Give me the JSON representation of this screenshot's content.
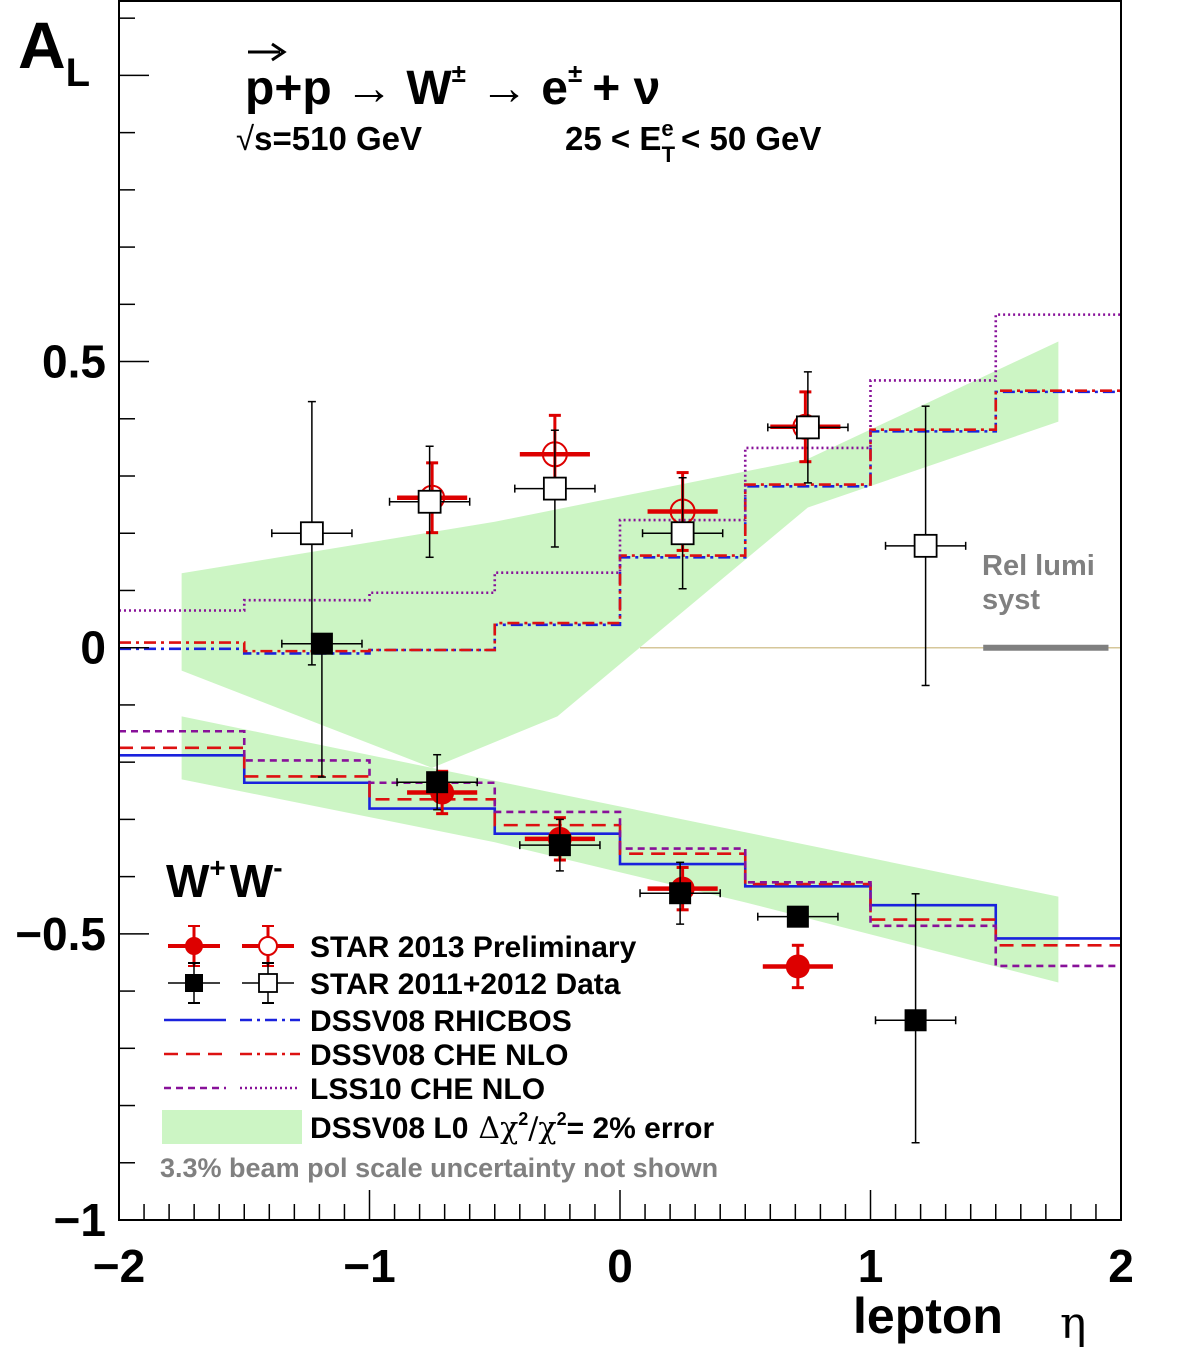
{
  "chart_data": {
    "type": "scatter",
    "ylabel": "A",
    "ylabel_sub": "L",
    "xlabel": "lepton",
    "xlabel_symbol": "η",
    "xlim": [
      -2,
      2
    ],
    "ylim": [
      -1.0,
      1.13
    ],
    "xticks": [
      -2,
      -1,
      0,
      1,
      2
    ],
    "xtick_labels": [
      "−2",
      "−1",
      "0",
      "1",
      "2"
    ],
    "yticks": [
      -1,
      -0.5,
      0,
      0.5
    ],
    "ytick_labels": [
      "−1",
      "−0.5",
      "0",
      "0.5"
    ],
    "grid": false,
    "header": {
      "reaction_p": "p",
      "reaction_rest": "+p → W",
      "reaction_pm": "±",
      "reaction_arrow": "→ e",
      "reaction_e_pm": "±",
      "reaction_tail": "+ ν",
      "sqrt_symbol": "√",
      "sqrt_s": "s=510 GeV",
      "et_cut_lo": "25 < E",
      "et_sup": "e",
      "et_sub": "T",
      "et_cut_hi": "< 50 GeV"
    },
    "rel_lumi": {
      "label_line1": "Rel lumi",
      "label_line2": "syst",
      "x": [
        1.45,
        1.95
      ],
      "y": 0.0,
      "color": "#808080"
    },
    "charge_labels": {
      "w_plus": "W",
      "w_plus_sup": "+",
      "w_minus": "W",
      "w_minus_sup": "-"
    },
    "legend": {
      "position": "bottom-left",
      "entries": [
        "STAR 2013 Preliminary",
        "STAR 2011+2012 Data",
        "DSSV08  RHICBOS",
        "DSSV08  CHE NLO",
        "LSS10 CHE NLO",
        "DSSV08 L0",
        "Δχ",
        "2",
        "/χ",
        "2",
        "= 2% error"
      ],
      "note": "3.3% beam pol scale uncertainty not shown"
    },
    "colors": {
      "star2013": "#dd0000",
      "star2011": "#000000",
      "rhicbos": "#1a22dd",
      "che_dssv": "#dd1111",
      "lss10": "#881199",
      "band": "#ccf5c4",
      "rel_lumi": "#808080",
      "zero_line": "#d6c79a"
    },
    "series": [
      {
        "name": "STAR 2013 Preliminary W+",
        "marker": "filled-circle",
        "points": [
          {
            "x": -0.71,
            "y": -0.253,
            "xerr": 0.14,
            "yerr_lo": 0.037,
            "yerr_hi": 0.037
          },
          {
            "x": -0.24,
            "y": -0.334,
            "xerr": 0.14,
            "yerr_lo": 0.037,
            "yerr_hi": 0.037
          },
          {
            "x": 0.25,
            "y": -0.421,
            "xerr": 0.14,
            "yerr_lo": 0.037,
            "yerr_hi": 0.037
          },
          {
            "x": 0.71,
            "y": -0.557,
            "xerr": 0.14,
            "yerr_lo": 0.037,
            "yerr_hi": 0.037
          }
        ]
      },
      {
        "name": "STAR 2013 Preliminary W-",
        "marker": "open-circle",
        "points": [
          {
            "x": -0.75,
            "y": 0.262,
            "xerr": 0.14,
            "yerr_lo": 0.061,
            "yerr_hi": 0.061
          },
          {
            "x": -0.26,
            "y": 0.338,
            "xerr": 0.14,
            "yerr_lo": 0.068,
            "yerr_hi": 0.068
          },
          {
            "x": 0.25,
            "y": 0.238,
            "xerr": 0.14,
            "yerr_lo": 0.068,
            "yerr_hi": 0.068
          },
          {
            "x": 0.74,
            "y": 0.386,
            "xerr": 0.14,
            "yerr_lo": 0.061,
            "yerr_hi": 0.061
          }
        ]
      },
      {
        "name": "STAR 2011+2012 Data W+",
        "marker": "filled-square",
        "points": [
          {
            "x": -1.19,
            "y": 0.007,
            "xerr": 0.16,
            "yerr_lo": 0.233,
            "yerr_hi": 0.008
          },
          {
            "x": -0.73,
            "y": -0.235,
            "xerr": 0.16,
            "yerr_lo": 0.048,
            "yerr_hi": 0.048
          },
          {
            "x": -0.24,
            "y": -0.345,
            "xerr": 0.16,
            "yerr_lo": 0.045,
            "yerr_hi": 0.045
          },
          {
            "x": 0.24,
            "y": -0.429,
            "xerr": 0.16,
            "yerr_lo": 0.054,
            "yerr_hi": 0.054
          },
          {
            "x": 0.71,
            "y": -0.47,
            "xerr": 0.16,
            "yerr_lo": 0.01,
            "yerr_hi": 0.01
          },
          {
            "x": 1.18,
            "y": -0.651,
            "xerr": 0.16,
            "yerr_lo": 0.214,
            "yerr_hi": 0.221
          }
        ]
      },
      {
        "name": "STAR 2011+2012 Data W-",
        "marker": "open-square",
        "points": [
          {
            "x": -1.23,
            "y": 0.2,
            "xerr": 0.16,
            "yerr_lo": 0.23,
            "yerr_hi": 0.23
          },
          {
            "x": -0.76,
            "y": 0.255,
            "xerr": 0.16,
            "yerr_lo": 0.097,
            "yerr_hi": 0.097
          },
          {
            "x": -0.26,
            "y": 0.278,
            "xerr": 0.16,
            "yerr_lo": 0.102,
            "yerr_hi": 0.102
          },
          {
            "x": 0.25,
            "y": 0.2,
            "xerr": 0.16,
            "yerr_lo": 0.097,
            "yerr_hi": 0.097
          },
          {
            "x": 0.75,
            "y": 0.385,
            "xerr": 0.16,
            "yerr_lo": 0.097,
            "yerr_hi": 0.097
          },
          {
            "x": 1.22,
            "y": 0.178,
            "xerr": 0.16,
            "yerr_lo": 0.244,
            "yerr_hi": 0.244
          }
        ]
      }
    ],
    "curves": [
      {
        "name": "DSSV08 RHICBOS W+",
        "style": "solid",
        "color": "rhicbos",
        "edges": [
          -2,
          -1.5,
          -1,
          -0.5,
          0,
          0.5,
          1,
          1.5,
          2
        ],
        "values": [
          -0.188,
          -0.236,
          -0.281,
          -0.325,
          -0.378,
          -0.417,
          -0.45,
          -0.508
        ]
      },
      {
        "name": "DSSV08 CHE NLO W+",
        "style": "dashed",
        "color": "che_dssv",
        "edges": [
          -2,
          -1.5,
          -1,
          -0.5,
          0,
          0.5,
          1,
          1.5,
          2
        ],
        "values": [
          -0.175,
          -0.225,
          -0.265,
          -0.31,
          -0.36,
          -0.413,
          -0.475,
          -0.52
        ]
      },
      {
        "name": "LSS10 CHE NLO W+",
        "style": "dashed-short",
        "color": "lss10",
        "edges": [
          -2,
          -1.5,
          -1,
          -0.5,
          0,
          0.5,
          1,
          1.5,
          2
        ],
        "values": [
          -0.146,
          -0.197,
          -0.236,
          -0.287,
          -0.351,
          -0.41,
          -0.486,
          -0.556
        ]
      },
      {
        "name": "DSSV08 RHICBOS W-",
        "style": "dash-dot",
        "color": "rhicbos",
        "edges": [
          -2,
          -1.5,
          -1,
          -0.5,
          0,
          0.5,
          1,
          1.5,
          2
        ],
        "values": [
          -0.002,
          -0.01,
          -0.004,
          0.04,
          0.158,
          0.282,
          0.378,
          0.447
        ]
      },
      {
        "name": "DSSV08 CHE NLO W-",
        "style": "dash-dot",
        "color": "che_dssv",
        "edges": [
          -2,
          -1.5,
          -1,
          -0.5,
          0,
          0.5,
          1,
          1.5,
          2
        ],
        "values": [
          0.009,
          -0.006,
          -0.004,
          0.043,
          0.161,
          0.285,
          0.381,
          0.449
        ]
      },
      {
        "name": "LSS10 CHE NLO W-",
        "style": "dotted",
        "color": "lss10",
        "edges": [
          -2,
          -1.5,
          -1,
          -0.5,
          0,
          0.5,
          1,
          1.5,
          2
        ],
        "values": [
          0.065,
          0.083,
          0.096,
          0.131,
          0.223,
          0.349,
          0.467,
          0.582
        ]
      }
    ],
    "bands": [
      {
        "name": "DSSV08 L0 error band W+",
        "upper": [
          [
            -1.75,
            -0.12
          ],
          [
            1.75,
            -0.435
          ]
        ],
        "lower": [
          [
            -1.75,
            -0.23
          ],
          [
            -0.5,
            -0.34
          ],
          [
            0.5,
            -0.445
          ],
          [
            1.75,
            -0.585
          ]
        ]
      },
      {
        "name": "DSSV08 L0 error band W-",
        "upper": [
          [
            -1.75,
            0.13
          ],
          [
            -0.5,
            0.22
          ],
          [
            0.75,
            0.33
          ],
          [
            1.75,
            0.535
          ]
        ],
        "lower": [
          [
            -1.75,
            -0.04
          ],
          [
            -0.75,
            -0.21
          ],
          [
            -0.25,
            -0.12
          ],
          [
            0.75,
            0.245
          ],
          [
            1.75,
            0.395
          ]
        ]
      }
    ]
  }
}
